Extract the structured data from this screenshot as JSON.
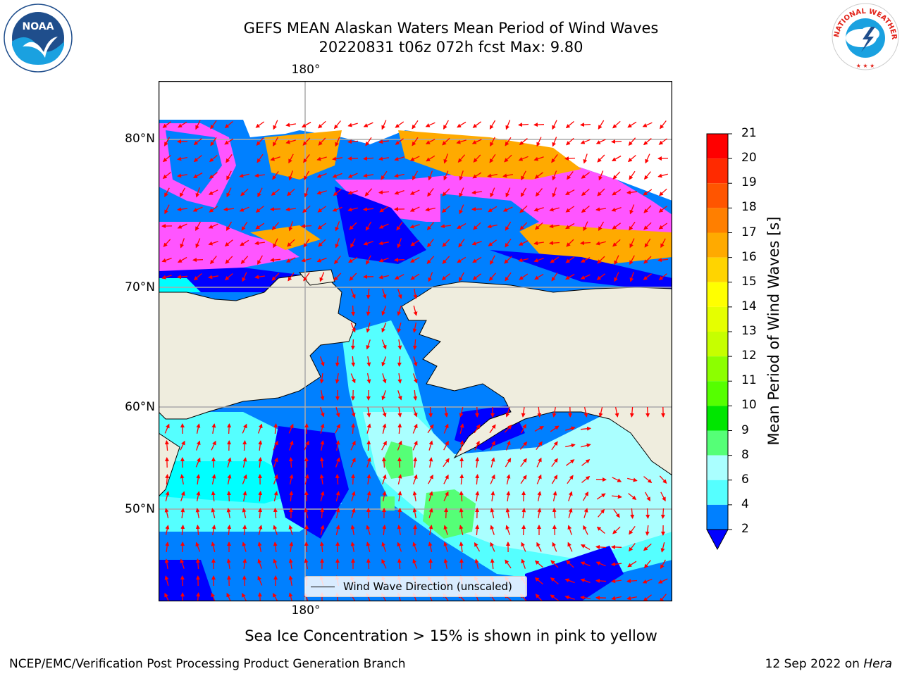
{
  "title_line1": "GEFS MEAN Alaskan Waters Mean Period of Wind Waves",
  "title_line2": "20220831 t06z 072h fcst   Max: 9.80",
  "map": {
    "lon_label_top": "180°",
    "lon_label_bottom": "180°",
    "lat_labels": [
      "80°N",
      "70°N",
      "60°N",
      "50°N"
    ],
    "legend_label": "Wind Wave Direction (unscaled)",
    "arrow_color": "#ff0000",
    "land_color": "#efedde"
  },
  "colorbar": {
    "title": "Mean Period of Wind Waves [s]",
    "ticks": [
      "21",
      "20",
      "19",
      "18",
      "17",
      "16",
      "15",
      "14",
      "13",
      "12",
      "11",
      "10",
      "9",
      "8",
      "6",
      "4",
      "2"
    ],
    "colors": [
      "#ff0000",
      "#ff2a00",
      "#ff5500",
      "#ff7f00",
      "#ffaa00",
      "#ffd400",
      "#ffff00",
      "#e5ff00",
      "#c6ff00",
      "#8cff00",
      "#55ff00",
      "#00e600",
      "#55ff77",
      "#aaffff",
      "#55ffff",
      "#00ffff",
      "#0080ff"
    ],
    "extend_color": "#0000ff"
  },
  "note": "Sea Ice Concentration > 15% is shown in pink to yellow",
  "footer_left": "NCEP/EMC/Verification Post Processing Product Generation Branch",
  "footer_right_date": "12 Sep 2022 on",
  "footer_right_machine": "Hera",
  "logos": {
    "left": "NOAA",
    "right": "NATIONAL WEATHER SERVICE"
  }
}
